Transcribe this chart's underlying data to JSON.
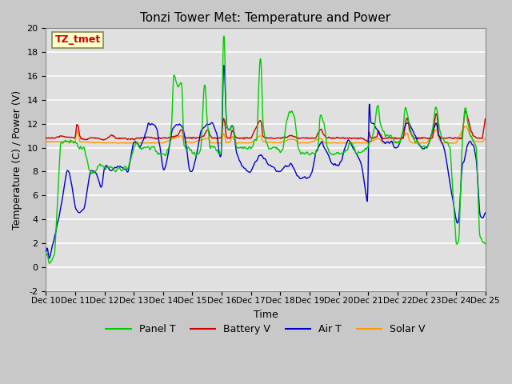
{
  "title": "Tonzi Tower Met: Temperature and Power",
  "xlabel": "Time",
  "ylabel": "Temperature (C) / Power (V)",
  "ylim": [
    -2,
    20
  ],
  "yticks": [
    -2,
    0,
    2,
    4,
    6,
    8,
    10,
    12,
    14,
    16,
    18,
    20
  ],
  "xtick_labels": [
    "Dec 10",
    "Dec 11",
    "Dec 12",
    "Dec 13",
    "Dec 14",
    "Dec 15",
    "Dec 16",
    "Dec 17",
    "Dec 18",
    "Dec 19",
    "Dec 20",
    "Dec 21",
    "Dec 22",
    "Dec 23",
    "Dec 24",
    "Dec 25"
  ],
  "annotation_text": "TZ_tmet",
  "annotation_color": "#cc0000",
  "annotation_bg": "#ffffcc",
  "annotation_border": "#999966",
  "fig_bg": "#d0d0d0",
  "plot_bg": "#e8e8e8",
  "grid_color": "#ffffff",
  "line_colors": {
    "panel": "#00cc00",
    "battery": "#cc0000",
    "air": "#0000cc",
    "solar": "#ff9900"
  },
  "legend_labels": [
    "Panel T",
    "Battery V",
    "Air T",
    "Solar V"
  ]
}
